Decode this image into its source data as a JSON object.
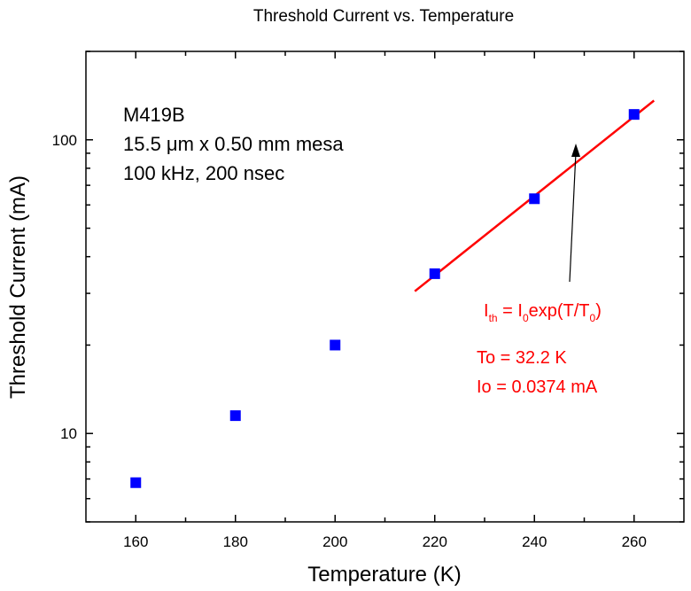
{
  "chart_data": {
    "type": "scatter",
    "title": "Threshold Current vs. Temperature",
    "xlabel": "Temperature (K)",
    "ylabel": "Threshold Current (mA)",
    "xlim": [
      150,
      270
    ],
    "ylim": [
      5,
      200
    ],
    "y_scale": "log",
    "grid": false,
    "x_ticks": [
      160,
      180,
      200,
      220,
      240,
      260
    ],
    "x_tick_labels": [
      "160",
      "180",
      "200",
      "220",
      "240",
      "260"
    ],
    "y_ticks": [
      10,
      100
    ],
    "y_tick_labels": [
      "10",
      "100"
    ],
    "marker_color": "#0000ff",
    "fit_color": "#ff0000",
    "series": [
      {
        "x": [
          160,
          180,
          200,
          220,
          240,
          260
        ],
        "y": [
          6.8,
          11.5,
          20.0,
          35.0,
          63.0,
          122.0
        ]
      }
    ],
    "fit_line": {
      "x": [
        216,
        264
      ],
      "y": [
        30.5,
        136
      ]
    },
    "annotations": {
      "sample_lines": [
        "M419B",
        "15.5 μm x 0.50 mm mesa",
        "100 kHz, 200 nsec"
      ],
      "equation": {
        "I": "I",
        "th": "th",
        "eq": " = I",
        "zero": "0",
        "exp": "exp(T/T",
        "zero2": "0",
        "close": ")"
      },
      "params": [
        "To = 32.2 K",
        "Io = 0.0374 mA"
      ]
    }
  }
}
